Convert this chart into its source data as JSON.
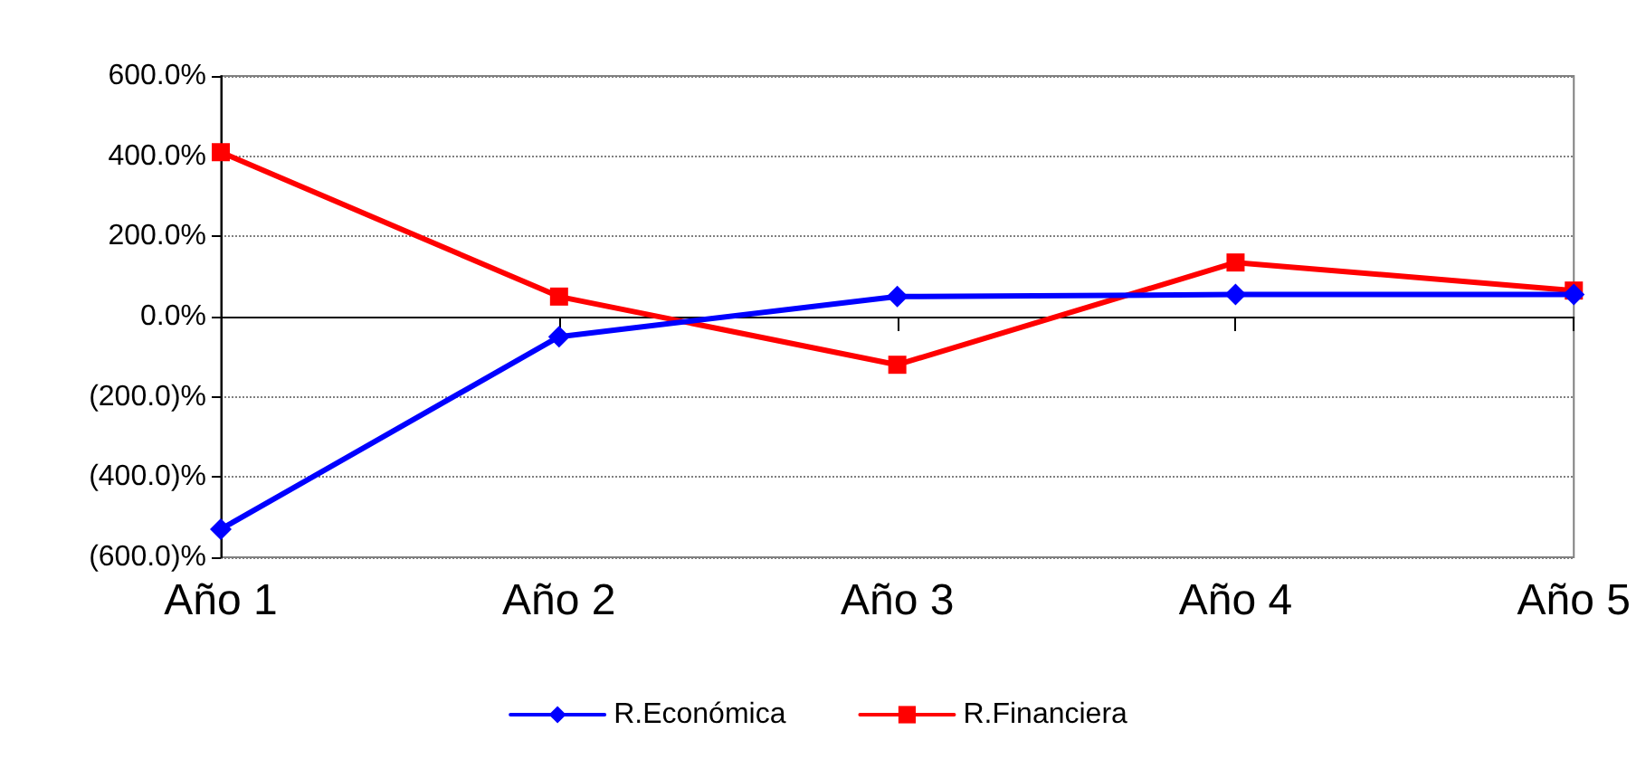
{
  "chart_data": {
    "type": "line",
    "categories": [
      "Año 1",
      "Año 2",
      "Año 3",
      "Año 4",
      "Año 5"
    ],
    "series": [
      {
        "name": "R.Económica",
        "color": "#0000ff",
        "marker": "diamond",
        "values": [
          -530,
          -50,
          50,
          55,
          55
        ]
      },
      {
        "name": "R.Financiera",
        "color": "#ff0000",
        "marker": "square",
        "values": [
          410,
          50,
          -120,
          135,
          65
        ]
      }
    ],
    "ylim": [
      -600,
      600
    ],
    "yticks": [
      {
        "value": -600,
        "label": "(600.0)%"
      },
      {
        "value": -400,
        "label": "(400.0)%"
      },
      {
        "value": -200,
        "label": "(200.0)%"
      },
      {
        "value": 0,
        "label": "0.0%"
      },
      {
        "value": 200,
        "label": "200.0%"
      },
      {
        "value": 400,
        "label": "400.0%"
      },
      {
        "value": 600,
        "label": "600.0%"
      }
    ],
    "grid": "y",
    "legend": "bottom",
    "line_style": "solid"
  }
}
